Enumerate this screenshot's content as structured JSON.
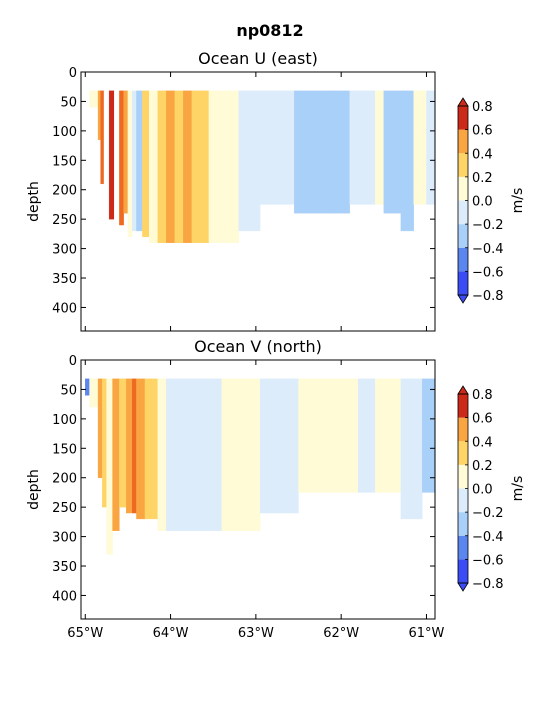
{
  "figure_title": "np0812",
  "colors": {
    "-0.8": "#3b4cf5",
    "-0.6": "#5b86ee",
    "-0.4": "#a9d0f8",
    "-0.2": "#dcecfb",
    "0.0": "#fefbd6",
    "0.2": "#fed467",
    "0.4": "#f9a542",
    "0.6": "#ee6a22",
    "0.8": "#cc2a18"
  },
  "chart_data": [
    {
      "type": "heatmap",
      "title": "Ocean U (east)",
      "xlabel": "",
      "ylabel": "depth",
      "xlim": [
        -65.05,
        -60.9
      ],
      "ylim": [
        440,
        0
      ],
      "x_ticks": [
        -65,
        -64,
        -63,
        -62,
        -61
      ],
      "x_tick_labels": [
        "65°W",
        "64°W",
        "63°W",
        "62°W",
        "61°W"
      ],
      "y_ticks": [
        0,
        50,
        100,
        150,
        200,
        250,
        300,
        350,
        400
      ],
      "y_tick_labels": [
        "0",
        "50",
        "100",
        "150",
        "200",
        "250",
        "300",
        "350",
        "400"
      ],
      "colorbar": {
        "label": "m/s",
        "levels": [
          -0.8,
          -0.6,
          -0.4,
          -0.2,
          0.0,
          0.2,
          0.4,
          0.6,
          0.8
        ],
        "tick_labels": [
          "−0.8",
          "−0.6",
          "−0.4",
          "−0.2",
          "0.0",
          "0.2",
          "0.4",
          "0.6",
          "0.8"
        ]
      },
      "data_top_depth": 32,
      "columns": [
        {
          "x0": -65.0,
          "x1": -64.95,
          "bottom": 60,
          "value": 0.7
        },
        {
          "x0": -64.95,
          "x1": -64.85,
          "bottom": 60,
          "value": 0.0
        },
        {
          "x0": -64.85,
          "x1": -64.82,
          "bottom": 115,
          "value": 0.4
        },
        {
          "x0": -64.82,
          "x1": -64.78,
          "bottom": 190,
          "value": 0.6
        },
        {
          "x0": -64.78,
          "x1": -64.72,
          "bottom": 230,
          "value": 0.7
        },
        {
          "x0": -64.72,
          "x1": -64.66,
          "bottom": 250,
          "value": 0.8
        },
        {
          "x0": -64.66,
          "x1": -64.6,
          "bottom": 270,
          "value": 0.5
        },
        {
          "x0": -64.6,
          "x1": -64.55,
          "bottom": 260,
          "value": 0.6
        },
        {
          "x0": -64.55,
          "x1": -64.5,
          "bottom": 240,
          "value": 0.4
        },
        {
          "x0": -64.5,
          "x1": -64.45,
          "bottom": 280,
          "value": 0.0
        },
        {
          "x0": -64.45,
          "x1": -64.4,
          "bottom": 270,
          "value": -0.2
        },
        {
          "x0": -64.4,
          "x1": -64.33,
          "bottom": 270,
          "value": -0.4
        },
        {
          "x0": -64.33,
          "x1": -64.25,
          "bottom": 280,
          "value": 0.2
        },
        {
          "x0": -64.25,
          "x1": -64.15,
          "bottom": 290,
          "value": 0.0
        },
        {
          "x0": -64.15,
          "x1": -64.05,
          "bottom": 290,
          "value": 0.2
        },
        {
          "x0": -64.05,
          "x1": -63.95,
          "bottom": 290,
          "value": 0.4
        },
        {
          "x0": -63.95,
          "x1": -63.85,
          "bottom": 290,
          "value": 0.2
        },
        {
          "x0": -63.85,
          "x1": -63.75,
          "bottom": 290,
          "value": 0.4
        },
        {
          "x0": -63.75,
          "x1": -63.55,
          "bottom": 290,
          "value": 0.2
        },
        {
          "x0": -63.55,
          "x1": -63.2,
          "bottom": 290,
          "value": 0.0
        },
        {
          "x0": -63.2,
          "x1": -62.95,
          "bottom": 270,
          "value": -0.2
        },
        {
          "x0": -62.95,
          "x1": -62.7,
          "bottom": 225,
          "value": -0.2
        },
        {
          "x0": -62.7,
          "x1": -62.55,
          "bottom": 225,
          "value": -0.2
        },
        {
          "x0": -62.55,
          "x1": -62.15,
          "bottom": 240,
          "value": -0.4
        },
        {
          "x0": -62.15,
          "x1": -61.9,
          "bottom": 240,
          "value": -0.4
        },
        {
          "x0": -61.9,
          "x1": -61.6,
          "bottom": 225,
          "value": -0.2
        },
        {
          "x0": -61.6,
          "x1": -61.5,
          "bottom": 225,
          "value": 0.0
        },
        {
          "x0": -61.5,
          "x1": -61.3,
          "bottom": 240,
          "value": -0.4
        },
        {
          "x0": -61.3,
          "x1": -61.15,
          "bottom": 270,
          "value": -0.4
        },
        {
          "x0": -61.15,
          "x1": -61.0,
          "bottom": 225,
          "value": 0.0
        },
        {
          "x0": -61.0,
          "x1": -60.9,
          "bottom": 225,
          "value": -0.2
        }
      ]
    },
    {
      "type": "heatmap",
      "title": "Ocean V (north)",
      "xlabel": "",
      "ylabel": "depth",
      "xlim": [
        -65.05,
        -60.9
      ],
      "ylim": [
        440,
        0
      ],
      "x_ticks": [
        -65,
        -64,
        -63,
        -62,
        -61
      ],
      "x_tick_labels": [
        "65°W",
        "64°W",
        "63°W",
        "62°W",
        "61°W"
      ],
      "y_ticks": [
        0,
        50,
        100,
        150,
        200,
        250,
        300,
        350,
        400
      ],
      "y_tick_labels": [
        "0",
        "50",
        "100",
        "150",
        "200",
        "250",
        "300",
        "350",
        "400"
      ],
      "colorbar": {
        "label": "m/s",
        "levels": [
          -0.8,
          -0.6,
          -0.4,
          -0.2,
          0.0,
          0.2,
          0.4,
          0.6,
          0.8
        ],
        "tick_labels": [
          "−0.8",
          "−0.6",
          "−0.4",
          "−0.2",
          "0.0",
          "0.2",
          "0.4",
          "0.6",
          "0.8"
        ]
      },
      "data_top_depth": 32,
      "columns": [
        {
          "x0": -65.0,
          "x1": -64.95,
          "bottom": 60,
          "value": -0.6
        },
        {
          "x0": -64.95,
          "x1": -64.85,
          "bottom": 80,
          "value": 0.0
        },
        {
          "x0": -64.85,
          "x1": -64.8,
          "bottom": 200,
          "value": 0.4
        },
        {
          "x0": -64.8,
          "x1": -64.75,
          "bottom": 250,
          "value": 0.2
        },
        {
          "x0": -64.75,
          "x1": -64.68,
          "bottom": 330,
          "value": 0.0
        },
        {
          "x0": -64.68,
          "x1": -64.6,
          "bottom": 290,
          "value": 0.4
        },
        {
          "x0": -64.6,
          "x1": -64.52,
          "bottom": 250,
          "value": 0.2
        },
        {
          "x0": -64.52,
          "x1": -64.45,
          "bottom": 260,
          "value": 0.4
        },
        {
          "x0": -64.45,
          "x1": -64.4,
          "bottom": 260,
          "value": 0.6
        },
        {
          "x0": -64.4,
          "x1": -64.3,
          "bottom": 270,
          "value": 0.4
        },
        {
          "x0": -64.3,
          "x1": -64.15,
          "bottom": 270,
          "value": 0.2
        },
        {
          "x0": -64.15,
          "x1": -64.05,
          "bottom": 290,
          "value": 0.0
        },
        {
          "x0": -64.05,
          "x1": -63.95,
          "bottom": 290,
          "value": -0.2
        },
        {
          "x0": -63.95,
          "x1": -63.4,
          "bottom": 290,
          "value": -0.2
        },
        {
          "x0": -63.4,
          "x1": -62.95,
          "bottom": 290,
          "value": 0.0
        },
        {
          "x0": -62.95,
          "x1": -62.5,
          "bottom": 260,
          "value": -0.2
        },
        {
          "x0": -62.5,
          "x1": -61.8,
          "bottom": 225,
          "value": 0.0
        },
        {
          "x0": -61.8,
          "x1": -61.6,
          "bottom": 225,
          "value": -0.2
        },
        {
          "x0": -61.6,
          "x1": -61.3,
          "bottom": 225,
          "value": 0.0
        },
        {
          "x0": -61.3,
          "x1": -61.05,
          "bottom": 270,
          "value": -0.2
        },
        {
          "x0": -61.05,
          "x1": -60.9,
          "bottom": 225,
          "value": -0.4
        }
      ]
    }
  ]
}
